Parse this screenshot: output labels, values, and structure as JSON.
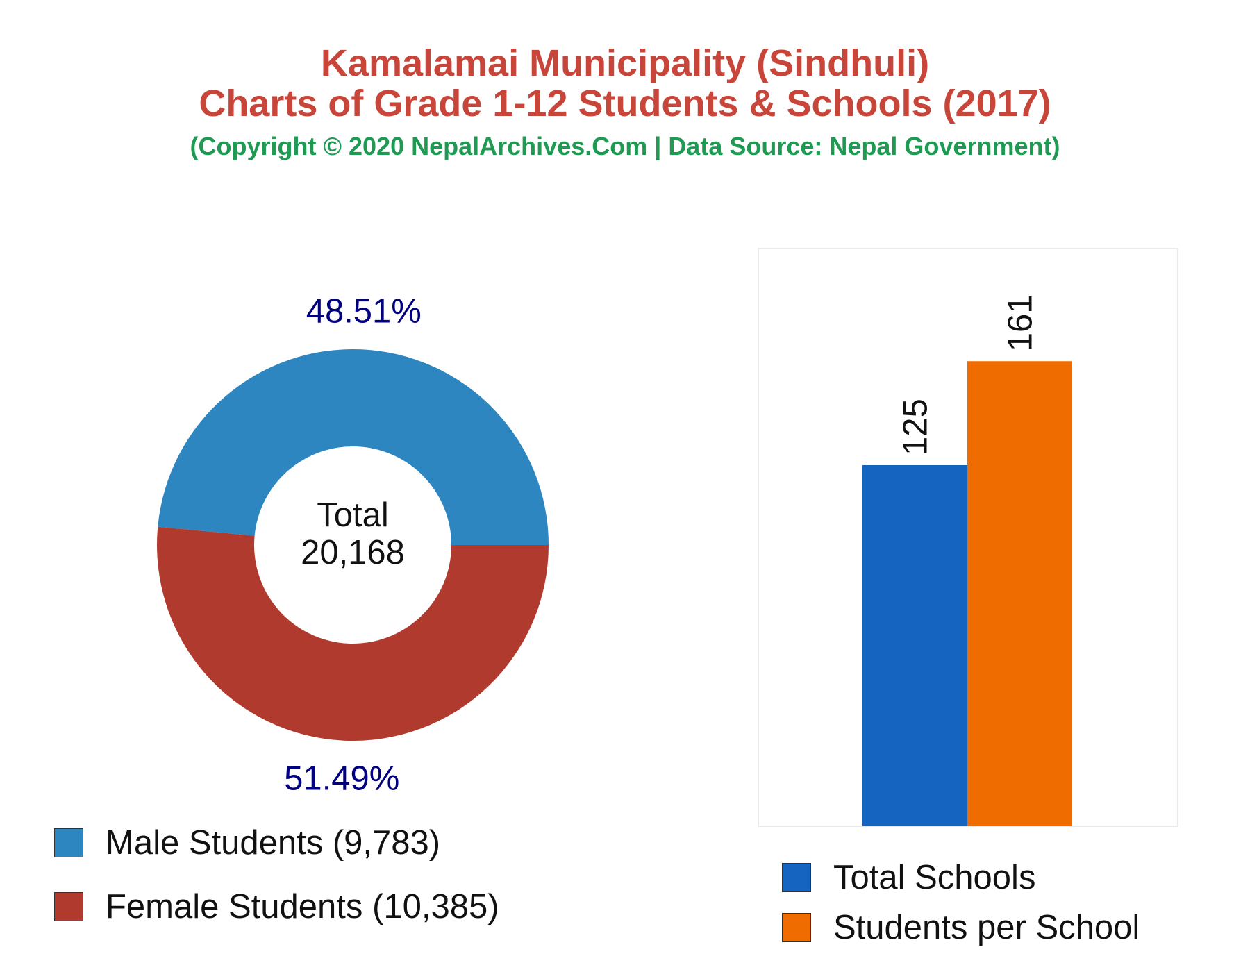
{
  "header": {
    "title_line1": "Kamalamai Municipality (Sindhuli)",
    "title_line2": "Charts of Grade 1-12 Students & Schools (2017)",
    "subtitle": "(Copyright © 2020 NepalArchives.Com | Data Source: Nepal Government)"
  },
  "colors": {
    "title": "#c8453a",
    "subtitle": "#1f9a53",
    "male": "#2e86c1",
    "female": "#b03a2e",
    "total_schools": "#1565c0",
    "students_per_school": "#ef6c00",
    "percent_label": "#000080"
  },
  "chart_data": [
    {
      "type": "pie",
      "subtype": "donut",
      "center_label": "Total",
      "center_value": "20,168",
      "slices": [
        {
          "name": "Male Students",
          "value": 9783,
          "percent": 48.51,
          "percent_label": "48.51%",
          "legend": "Male Students (9,783)",
          "color_key": "male"
        },
        {
          "name": "Female Students",
          "value": 10385,
          "percent": 51.49,
          "percent_label": "51.49%",
          "legend": "Female Students (10,385)",
          "color_key": "female"
        }
      ]
    },
    {
      "type": "bar",
      "categories": [
        "Total Schools",
        "Students per School"
      ],
      "values": [
        125,
        161
      ],
      "value_labels": [
        "125",
        "161"
      ],
      "ylim": [
        0,
        200
      ],
      "grid": false,
      "legend_position": "bottom",
      "series": [
        {
          "name": "Total Schools",
          "value": 125,
          "color_key": "total_schools"
        },
        {
          "name": "Students per School",
          "value": 161,
          "color_key": "students_per_school"
        }
      ]
    }
  ]
}
